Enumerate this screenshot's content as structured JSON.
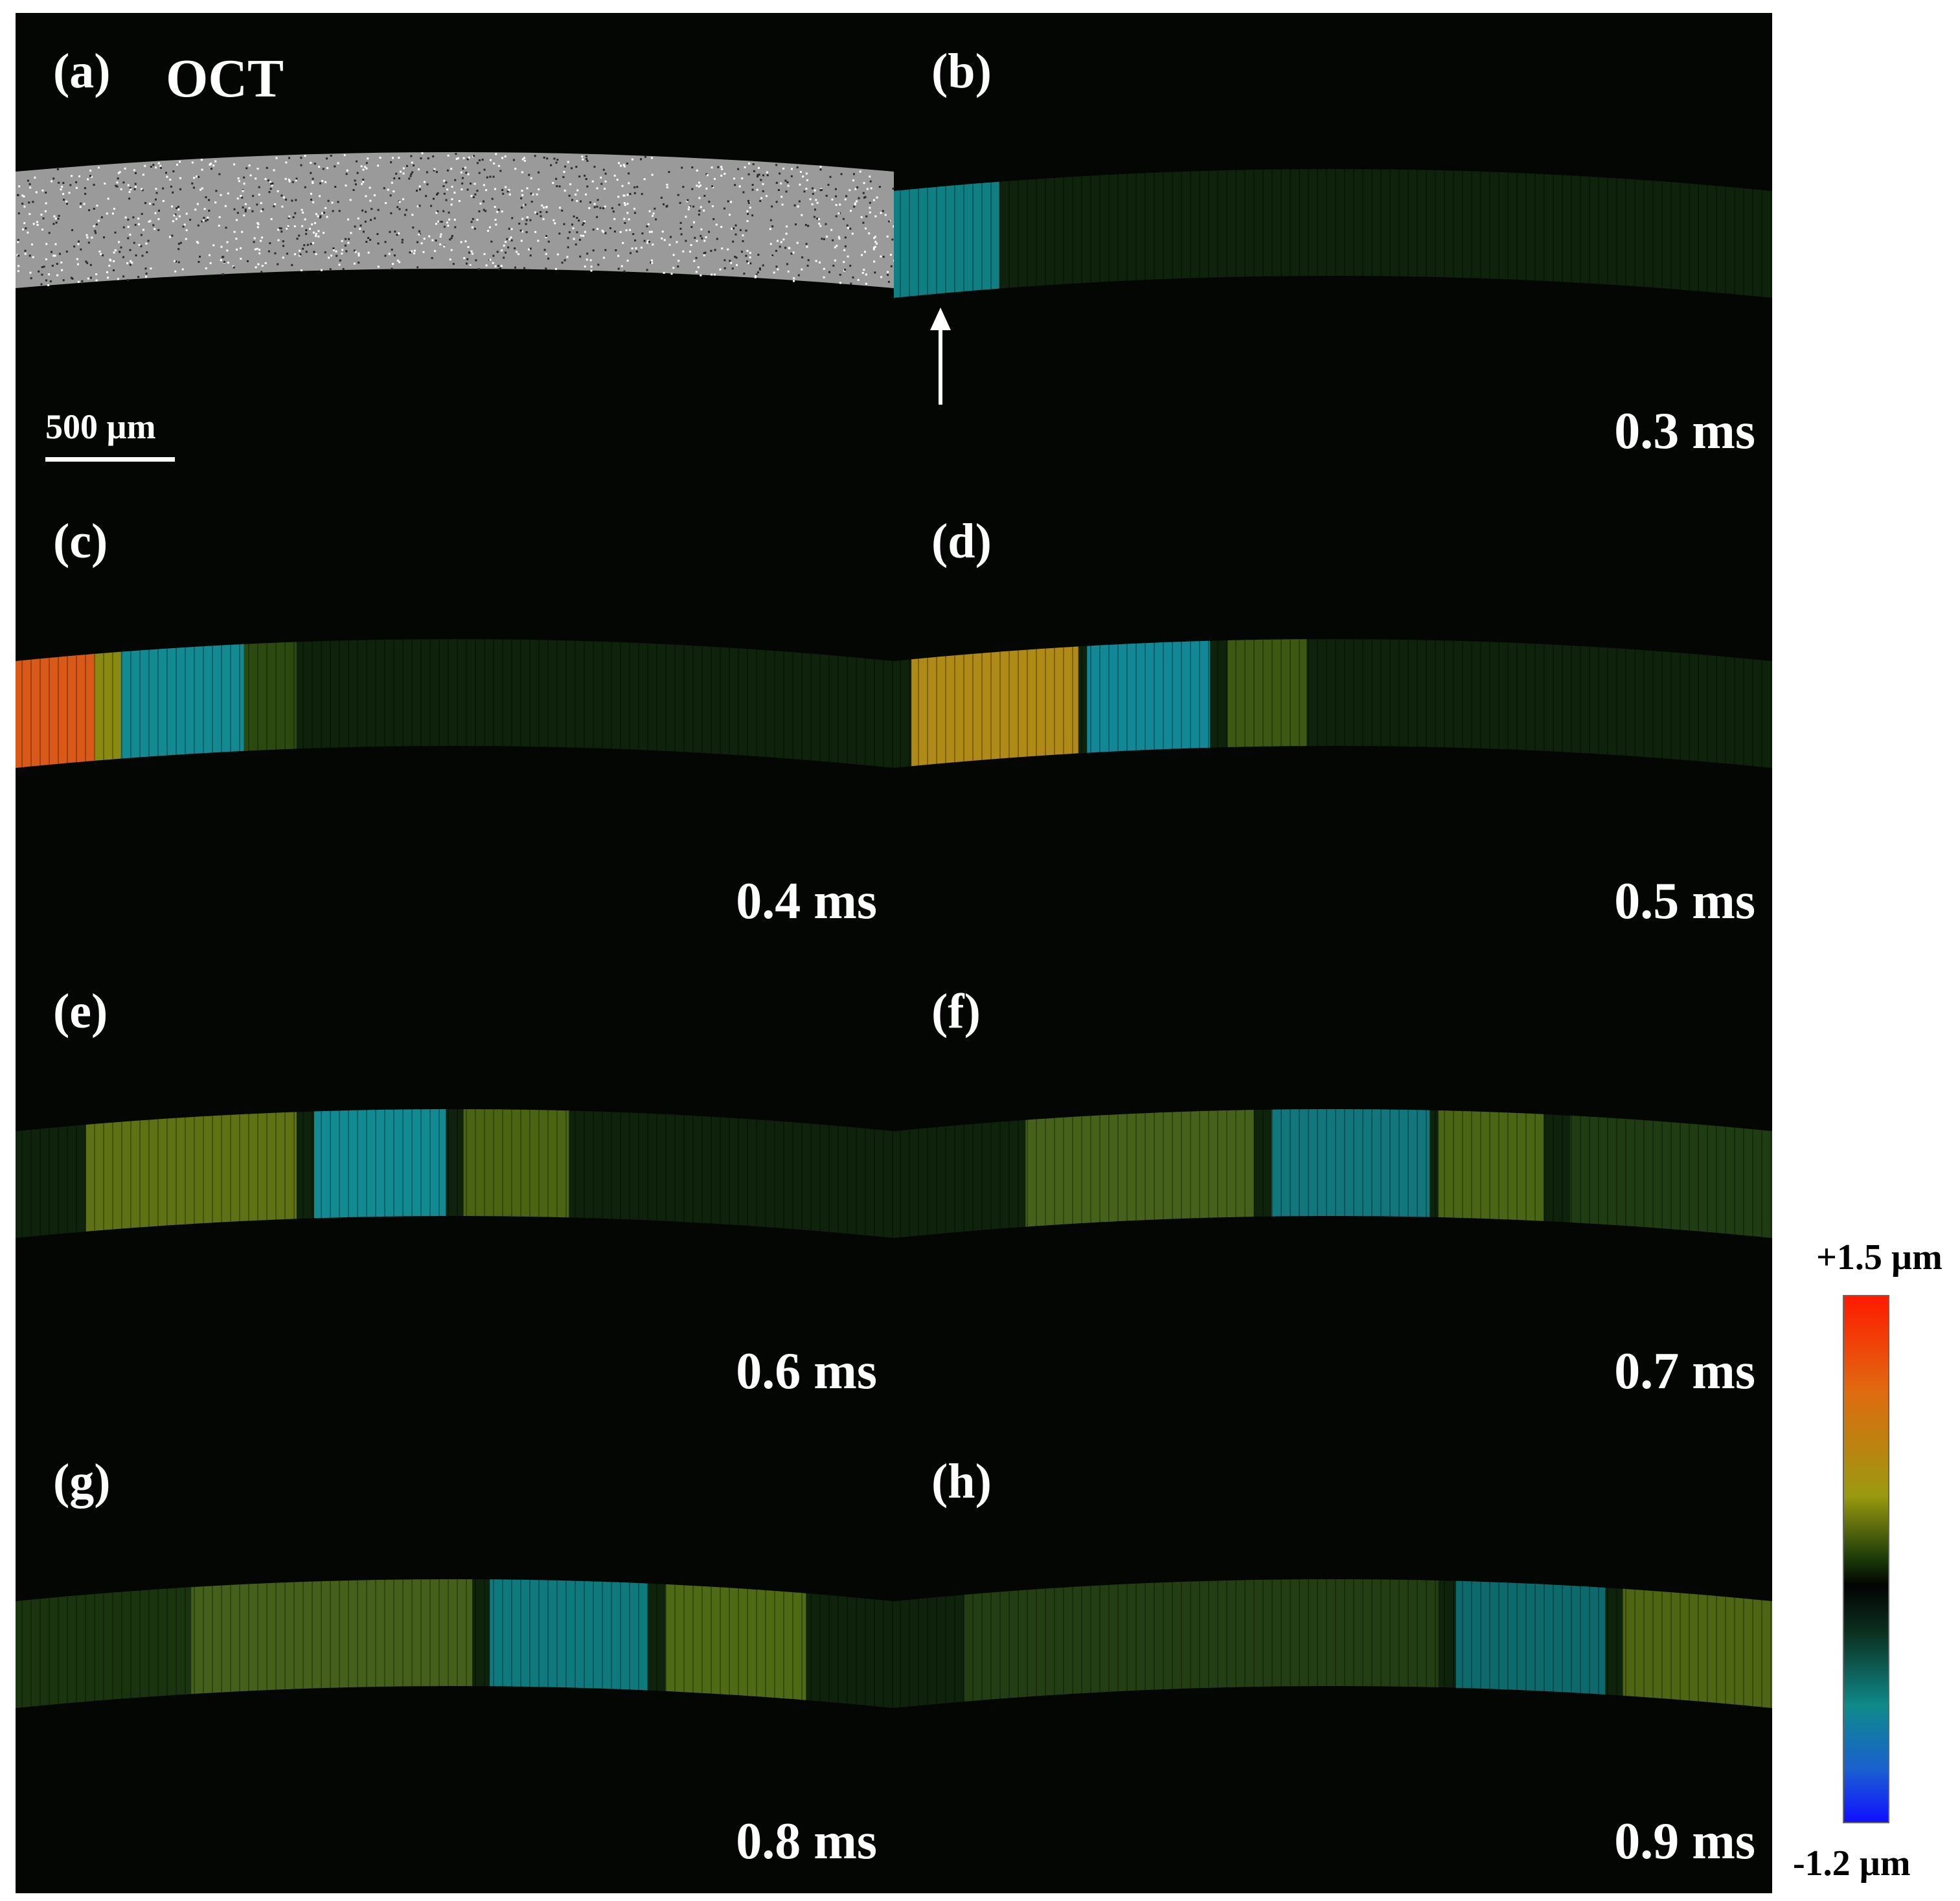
{
  "figure": {
    "panels": [
      {
        "label": "(a)",
        "title": "OCT",
        "time": "",
        "scale_label": "500 µm",
        "kind": "oct"
      },
      {
        "label": "(b)",
        "title": "",
        "time": "0.3 ms",
        "kind": "wave",
        "bands": [
          {
            "from": 0.0,
            "to": 0.12,
            "color": "#0e7f82"
          }
        ]
      },
      {
        "label": "(c)",
        "title": "",
        "time": "0.4 ms",
        "kind": "wave",
        "bands": [
          {
            "from": 0.0,
            "to": 0.09,
            "color": "#d95a18"
          },
          {
            "from": 0.09,
            "to": 0.12,
            "color": "#8a8a10"
          },
          {
            "from": 0.12,
            "to": 0.26,
            "color": "#138a92"
          },
          {
            "from": 0.26,
            "to": 0.32,
            "color": "#2c4a10"
          }
        ]
      },
      {
        "label": "(d)",
        "title": "",
        "time": "0.5 ms",
        "kind": "wave",
        "bands": [
          {
            "from": 0.02,
            "to": 0.21,
            "color": "#b08a16"
          },
          {
            "from": 0.22,
            "to": 0.36,
            "color": "#128896"
          },
          {
            "from": 0.38,
            "to": 0.47,
            "color": "#3c5812"
          }
        ]
      },
      {
        "label": "(e)",
        "title": "",
        "time": "0.6 ms",
        "kind": "wave",
        "bands": [
          {
            "from": 0.08,
            "to": 0.32,
            "color": "#5e7214"
          },
          {
            "from": 0.34,
            "to": 0.49,
            "color": "#128a92"
          },
          {
            "from": 0.51,
            "to": 0.63,
            "color": "#4a6412"
          }
        ]
      },
      {
        "label": "(f)",
        "title": "",
        "time": "0.7 ms",
        "kind": "wave",
        "bands": [
          {
            "from": 0.15,
            "to": 0.41,
            "color": "#45611a"
          },
          {
            "from": 0.43,
            "to": 0.61,
            "color": "#11777c"
          },
          {
            "from": 0.62,
            "to": 0.74,
            "color": "#4a6614"
          },
          {
            "from": 0.77,
            "to": 1.0,
            "color": "#1f3c12"
          }
        ]
      },
      {
        "label": "(g)",
        "title": "",
        "time": "0.8 ms",
        "kind": "wave",
        "bands": [
          {
            "from": 0.0,
            "to": 0.2,
            "color": "#1a3410"
          },
          {
            "from": 0.2,
            "to": 0.52,
            "color": "#45601a"
          },
          {
            "from": 0.54,
            "to": 0.72,
            "color": "#0f7a7e"
          },
          {
            "from": 0.74,
            "to": 0.9,
            "color": "#4e6a14"
          }
        ]
      },
      {
        "label": "(h)",
        "title": "",
        "time": "0.9 ms",
        "kind": "wave",
        "bands": [
          {
            "from": 0.08,
            "to": 0.62,
            "color": "#243e14"
          },
          {
            "from": 0.64,
            "to": 0.81,
            "color": "#0d6a6c"
          },
          {
            "from": 0.83,
            "to": 1.0,
            "color": "#4e6614"
          }
        ]
      }
    ],
    "colorbar": {
      "max_label": "+1.5 µm",
      "min_label": "-1.2 µm",
      "max_value": 1.5,
      "min_value": -1.2,
      "unit": "µm"
    }
  }
}
